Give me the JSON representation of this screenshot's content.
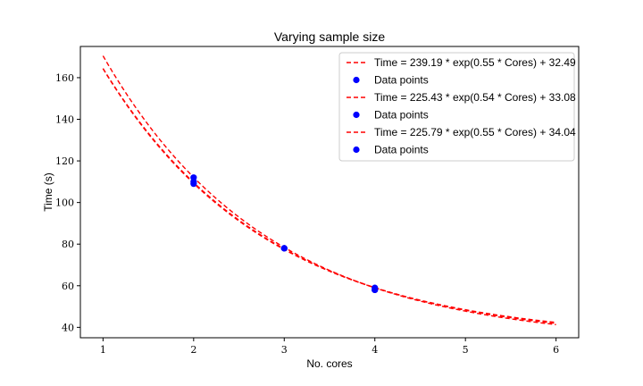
{
  "chart_data": {
    "type": "scatter",
    "title": "Varying sample size",
    "xlabel": "No. cores",
    "ylabel": "Time (s)",
    "xlim": [
      0.75,
      6.25
    ],
    "ylim": [
      35,
      175
    ],
    "xticks": [
      1,
      2,
      3,
      4,
      5,
      6
    ],
    "yticks": [
      40,
      60,
      80,
      100,
      120,
      140,
      160
    ],
    "grid": false,
    "legend_position": "top-right",
    "colors": {
      "fit": "#ff0000",
      "points": "#0000ff"
    },
    "series": [
      {
        "fit_label": "Time = 239.19 * exp(0.55 * Cores) + 32.49",
        "points_label": "Data points",
        "a": 239.19,
        "b": 0.55,
        "c": 32.49,
        "fit_x_range": [
          1,
          6
        ],
        "points": [
          [
            2,
            112
          ],
          [
            3,
            78
          ],
          [
            4,
            58
          ]
        ]
      },
      {
        "fit_label": "Time = 225.43 * exp(0.54 * Cores) + 33.08",
        "points_label": "Data points",
        "a": 225.43,
        "b": 0.54,
        "c": 33.08,
        "fit_x_range": [
          1,
          6
        ],
        "points": [
          [
            2,
            109
          ],
          [
            3,
            78
          ],
          [
            4,
            59
          ]
        ]
      },
      {
        "fit_label": "Time = 225.79 * exp(0.55 * Cores) + 34.04",
        "points_label": "Data points",
        "a": 225.79,
        "b": 0.55,
        "c": 34.04,
        "fit_x_range": [
          1,
          6
        ],
        "points": [
          [
            2,
            110
          ],
          [
            3,
            78
          ],
          [
            4,
            58
          ]
        ]
      }
    ]
  }
}
